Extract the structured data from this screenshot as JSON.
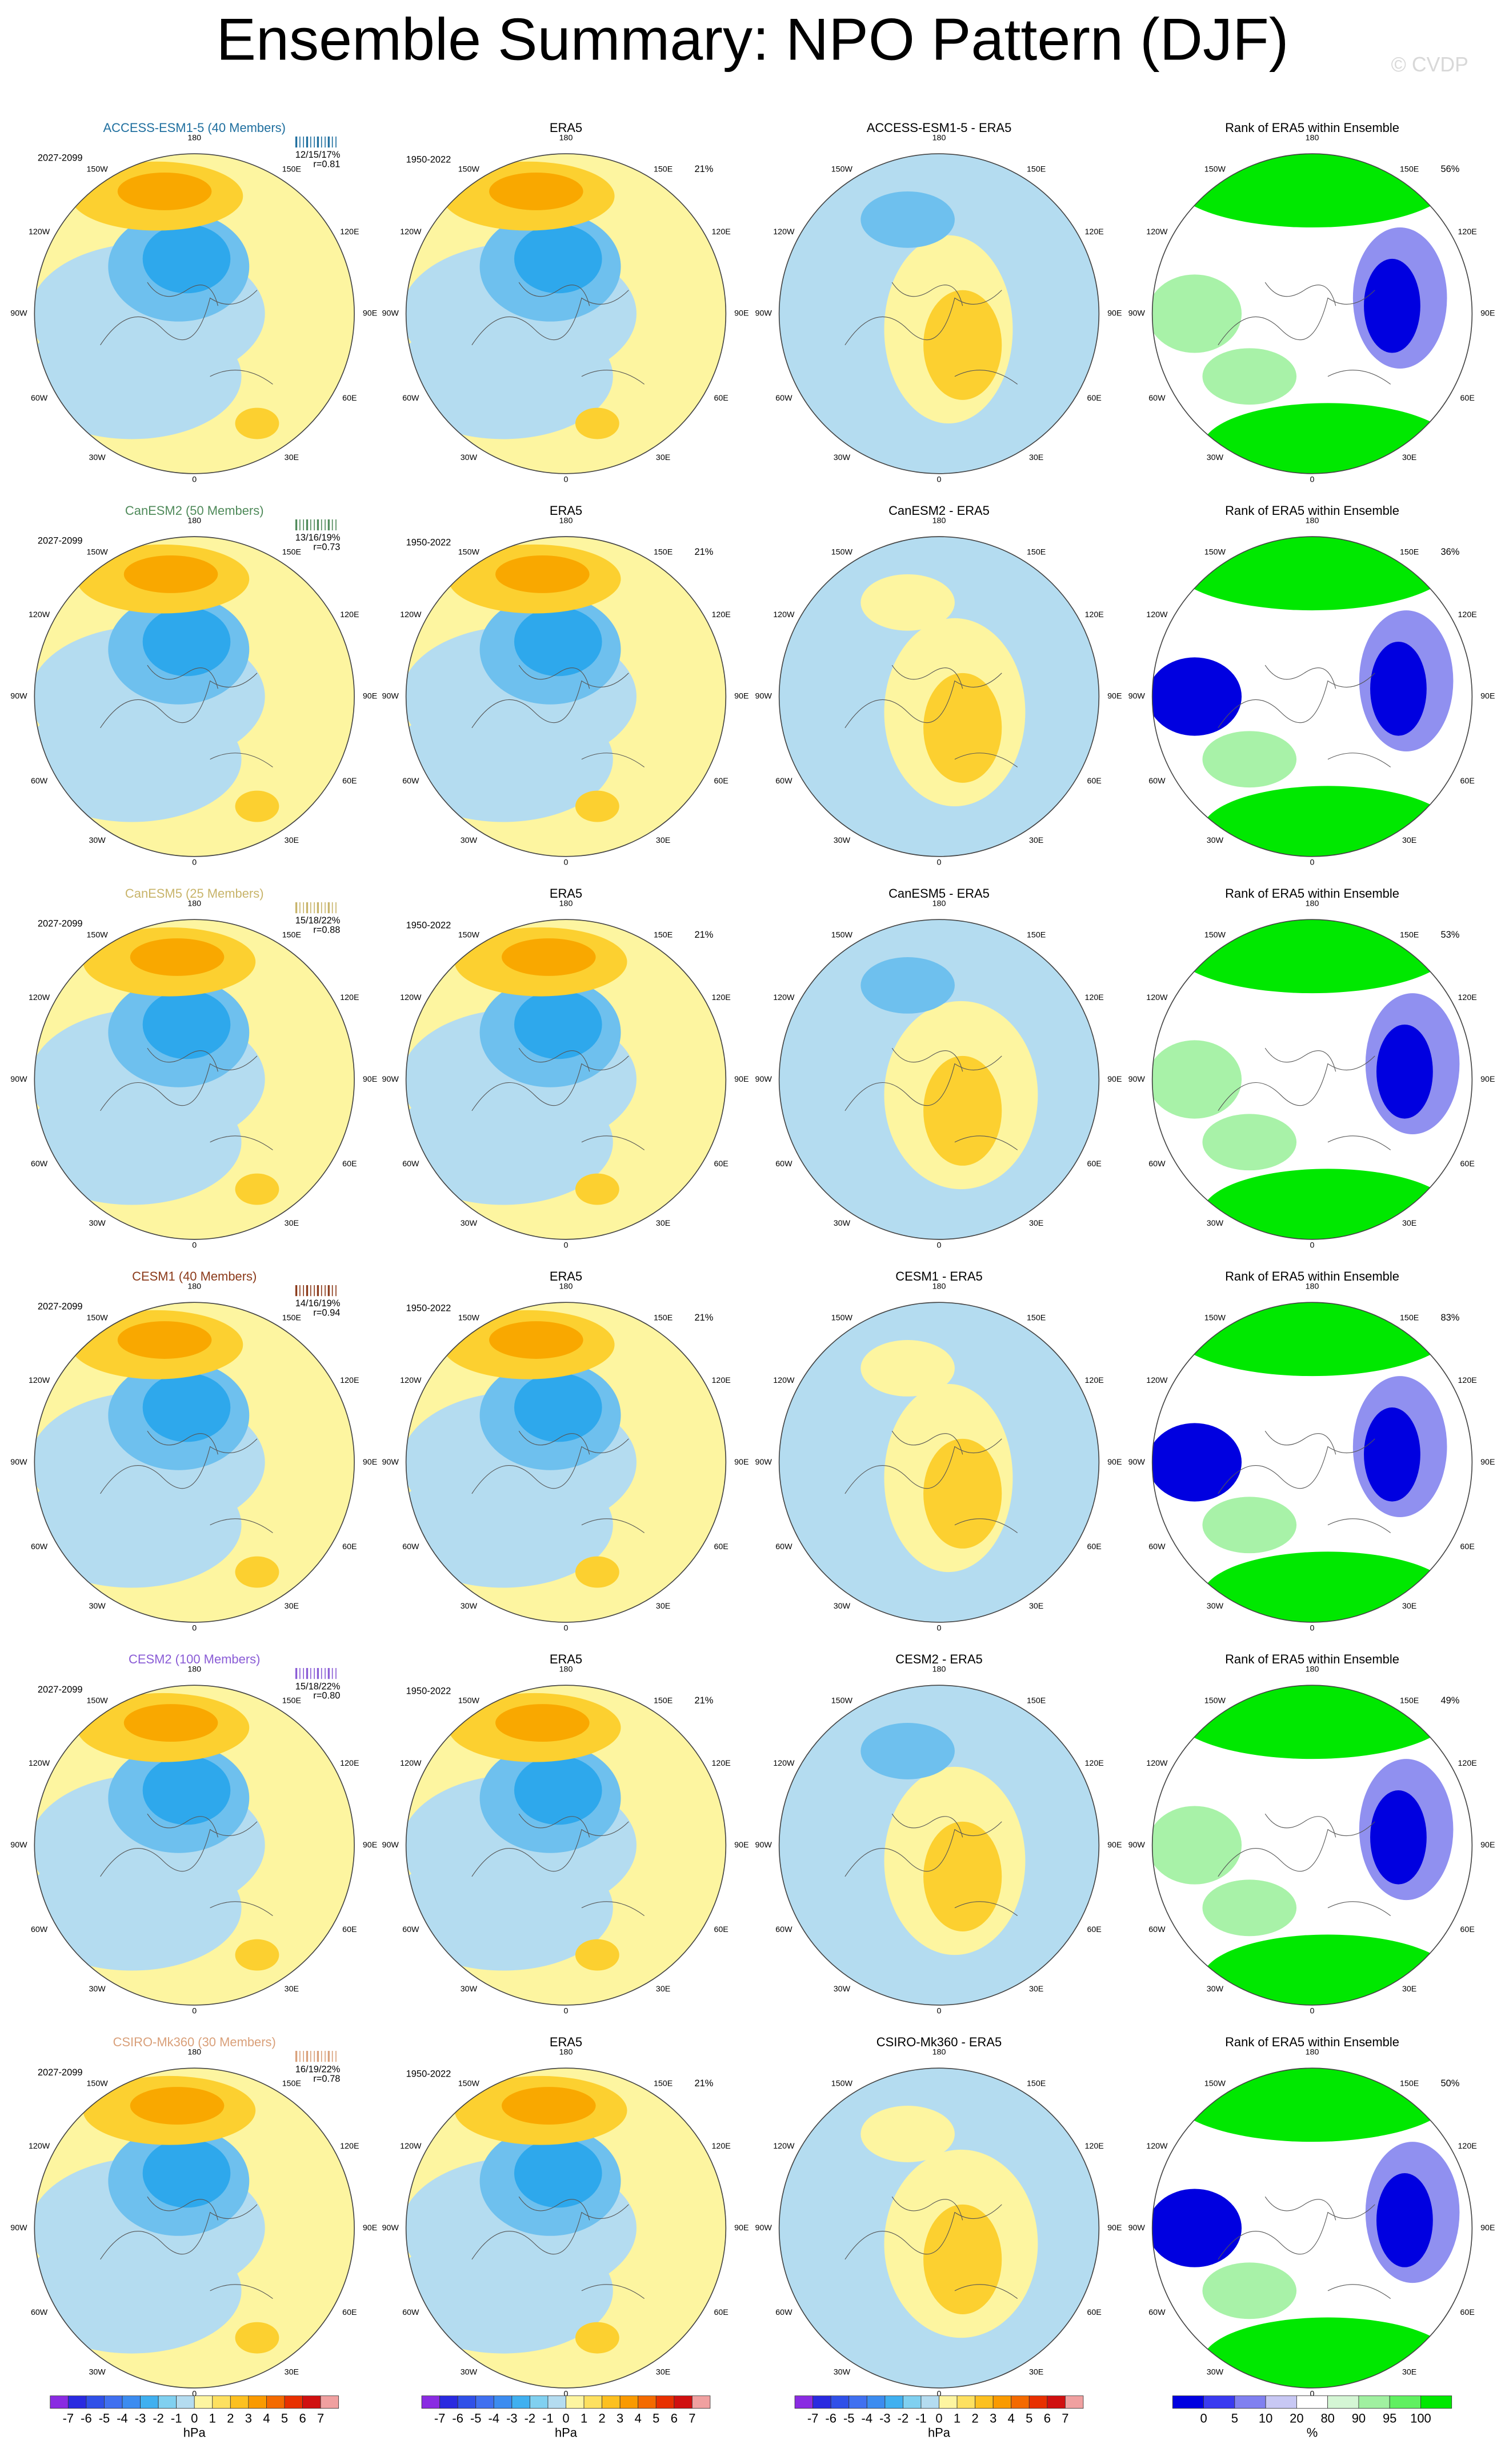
{
  "header": {
    "title": "Ensemble Summary: NPO Pattern (DJF)",
    "credit": "© CVDP"
  },
  "lon_labels": {
    "top": "180",
    "nw": "150W",
    "ne": "150E",
    "wnw": "120W",
    "ene": "120E",
    "w": "90W",
    "e": "90E",
    "wsw": "60W",
    "ese": "60E",
    "sw": "30W",
    "se": "30E",
    "bottom": "0"
  },
  "rows": [
    {
      "title": "ACCESS-ESM1-5 (40 Members)",
      "title_color": "#1f6f9f",
      "period": "2027-2099",
      "stats": "12/15/17%",
      "r": "r=0.81",
      "era_title": "ERA5",
      "era_period": "1950-2022",
      "era_pct": "21%",
      "diff_title": "ACCESS-ESM1-5 - ERA5",
      "rank_title": "Rank of ERA5 within Ensemble",
      "rank_pct": "56%"
    },
    {
      "title": "CanESM2 (50 Members)",
      "title_color": "#4f8a5a",
      "period": "2027-2099",
      "stats": "13/16/19%",
      "r": "r=0.73",
      "era_title": "ERA5",
      "era_period": "1950-2022",
      "era_pct": "21%",
      "diff_title": "CanESM2 - ERA5",
      "rank_title": "Rank of ERA5 within Ensemble",
      "rank_pct": "36%"
    },
    {
      "title": "CanESM5 (25 Members)",
      "title_color": "#c8b46a",
      "period": "2027-2099",
      "stats": "15/18/22%",
      "r": "r=0.88",
      "era_title": "ERA5",
      "era_period": "1950-2022",
      "era_pct": "21%",
      "diff_title": "CanESM5 - ERA5",
      "rank_title": "Rank of ERA5 within Ensemble",
      "rank_pct": "53%"
    },
    {
      "title": "CESM1 (40 Members)",
      "title_color": "#8b3a1a",
      "period": "2027-2099",
      "stats": "14/16/19%",
      "r": "r=0.94",
      "era_title": "ERA5",
      "era_period": "1950-2022",
      "era_pct": "21%",
      "diff_title": "CESM1 - ERA5",
      "rank_title": "Rank of ERA5 within Ensemble",
      "rank_pct": "83%"
    },
    {
      "title": "CESM2 (100 Members)",
      "title_color": "#8a5cd6",
      "period": "2027-2099",
      "stats": "15/18/22%",
      "r": "r=0.80",
      "era_title": "ERA5",
      "era_period": "1950-2022",
      "era_pct": "21%",
      "diff_title": "CESM2 - ERA5",
      "rank_title": "Rank of ERA5 within Ensemble",
      "rank_pct": "49%"
    },
    {
      "title": "CSIRO-Mk360 (30 Members)",
      "title_color": "#d9a07a",
      "period": "2027-2099",
      "stats": "16/19/22%",
      "r": "r=0.78",
      "era_title": "ERA5",
      "era_period": "1950-2022",
      "era_pct": "21%",
      "diff_title": "CSIRO-Mk360 - ERA5",
      "rank_title": "Rank of ERA5 within Ensemble",
      "rank_pct": "50%"
    }
  ],
  "colorbars": {
    "hpa": {
      "labels": [
        "-7",
        "-6",
        "-5",
        "-4",
        "-3",
        "-2",
        "-1",
        "0",
        "1",
        "2",
        "3",
        "4",
        "5",
        "6",
        "7"
      ],
      "unit": "hPa",
      "colors": [
        "#8a2be2",
        "#2a2ae0",
        "#3050e8",
        "#4070f0",
        "#3c8cf0",
        "#40b0f0",
        "#80d0f0",
        "#b4dcf0",
        "#fdf5a0",
        "#fde060",
        "#fcc020",
        "#fa9a00",
        "#f46a00",
        "#e83000",
        "#d01010",
        "#f0a0a0"
      ]
    },
    "rank": {
      "labels": [
        "0",
        "5",
        "10",
        "20",
        "80",
        "90",
        "95",
        "100"
      ],
      "unit": "%",
      "colors": [
        "#0000e0",
        "#3a3af0",
        "#8080f0",
        "#c8c8f4",
        "#ffffff",
        "#d4f6d4",
        "#a0f0a0",
        "#60f060",
        "#00e800"
      ]
    }
  }
}
